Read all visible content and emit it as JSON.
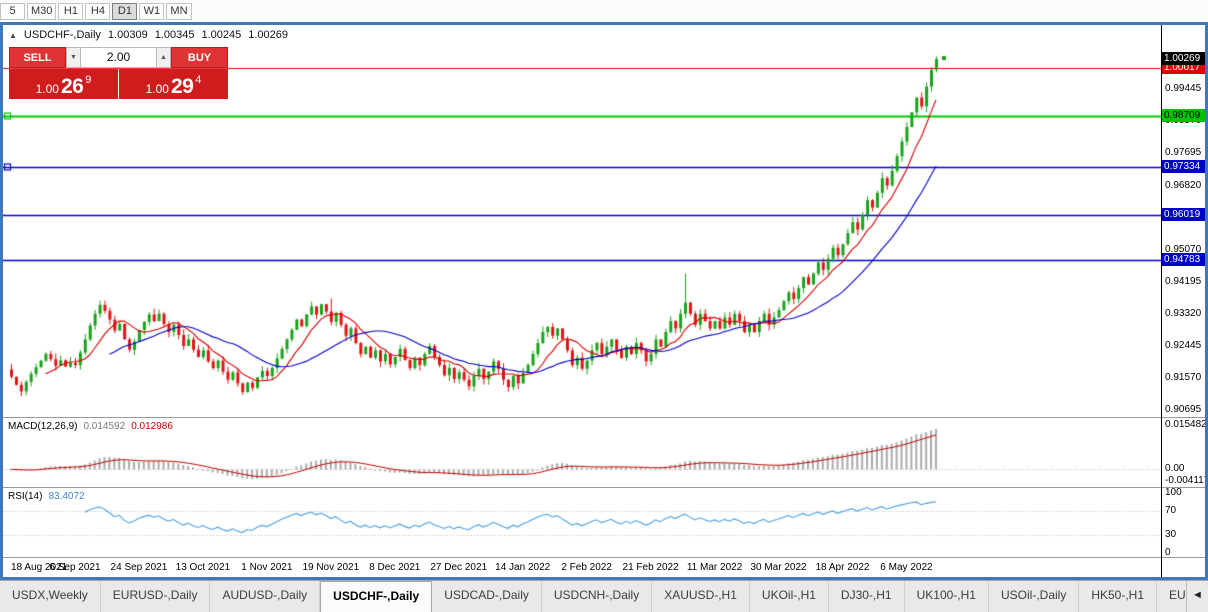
{
  "toolbar": {
    "periods": [
      {
        "label": "5"
      },
      {
        "label": "M30"
      },
      {
        "label": "H1"
      },
      {
        "label": "H4"
      },
      {
        "label": "D1",
        "active": true
      },
      {
        "label": "W1"
      },
      {
        "label": "MN"
      }
    ]
  },
  "chart": {
    "header": {
      "title": "USDCHF-,Daily",
      "open": "1.00309",
      "high": "1.00345",
      "low": "1.00245",
      "close": "1.00269"
    },
    "trade_panel": {
      "sell_label": "SELL",
      "buy_label": "BUY",
      "volume": "2.00",
      "decrease_glyph": "▼",
      "increase_glyph": "▲",
      "sell_price": {
        "prefix": "1.00",
        "big": "26",
        "sup": "9"
      },
      "buy_price": {
        "prefix": "1.00",
        "big": "29",
        "sup": "4"
      }
    },
    "price_axis": {
      "current": {
        "value": "1.00269",
        "bg": "#000000",
        "fg": "#ffffff"
      },
      "levels": [
        {
          "value": "1.00017",
          "color": "#e00000",
          "text": "#ffffff",
          "width": 1.2,
          "marker": false
        },
        {
          "value": "0.98709",
          "color": "#00c400",
          "text": "#000000",
          "width": 2,
          "marker": true
        },
        {
          "value": "0.97334",
          "color": "#0000c8",
          "text": "#ffffff",
          "width": 1.6,
          "marker": true
        },
        {
          "value": "0.96019",
          "color": "#0000c8",
          "text": "#ffffff",
          "width": 1.6,
          "marker": false
        },
        {
          "value": "0.94783",
          "color": "#0000c8",
          "text": "#ffffff",
          "width": 1.6,
          "marker": false
        }
      ],
      "gridline_labels": [
        "0.99445",
        "0.98570",
        "0.97695",
        "0.96820",
        "0.95945",
        "0.95070",
        "0.94195",
        "0.93320",
        "0.92445",
        "0.91570",
        "0.90695"
      ]
    }
  },
  "macd": {
    "label": "MACD(12,26,9)",
    "value": "0.014592",
    "signal_value": "0.012986",
    "axis": [
      "0.015482",
      "0.00",
      "-0.004117"
    ],
    "scale_max": 0.016,
    "scale_min": -0.0047
  },
  "rsi": {
    "label": "RSI(14)",
    "value": "83.4072",
    "axis": [
      "100",
      "70",
      "30",
      "0"
    ]
  },
  "date_axis": {
    "labels": [
      {
        "text": "18 Aug 2021",
        "i": 0
      },
      {
        "text": "6 Sep 2021",
        "i": 13
      },
      {
        "text": "24 Sep 2021",
        "i": 26
      },
      {
        "text": "13 Oct 2021",
        "i": 39
      },
      {
        "text": "1 Nov 2021",
        "i": 52
      },
      {
        "text": "19 Nov 2021",
        "i": 65
      },
      {
        "text": "8 Dec 2021",
        "i": 78
      },
      {
        "text": "27 Dec 2021",
        "i": 91
      },
      {
        "text": "14 Jan 2022",
        "i": 104
      },
      {
        "text": "2 Feb 2022",
        "i": 117
      },
      {
        "text": "21 Feb 2022",
        "i": 130
      },
      {
        "text": "11 Mar 2022",
        "i": 143
      },
      {
        "text": "30 Mar 2022",
        "i": 156
      },
      {
        "text": "18 Apr 2022",
        "i": 169
      },
      {
        "text": "6 May 2022",
        "i": 182
      }
    ]
  },
  "tabbar": {
    "scroll_left": "◄",
    "tabs": [
      {
        "label": "USDX,Weekly"
      },
      {
        "label": "EURUSD-,Daily"
      },
      {
        "label": "AUDUSD-,Daily"
      },
      {
        "label": "USDCHF-,Daily",
        "active": true
      },
      {
        "label": "USDCAD-,Daily"
      },
      {
        "label": "USDCNH-,Daily"
      },
      {
        "label": "XAUUSD-,H1"
      },
      {
        "label": "UKOil-,H1"
      },
      {
        "label": "DJ30-,H1"
      },
      {
        "label": "UK100-,H1"
      },
      {
        "label": "USOil-,Daily"
      },
      {
        "label": "HK50-,H1"
      },
      {
        "label": "EU"
      }
    ]
  },
  "colors": {
    "up": "#1aa21a",
    "down": "#e01515",
    "ma_fast": "#d40000",
    "ma_slow": "#0000c8",
    "macd_hist": "#ababab",
    "macd_signal": "#c00000",
    "rsi_line": "#4aa0e0"
  },
  "chart_data": {
    "type": "candlestick",
    "symbol": "USDCHF-",
    "timeframe": "Daily",
    "last_ohlc": {
      "open": 1.00309,
      "high": 1.00345,
      "low": 1.00245,
      "close": 1.00269
    },
    "visible_price_range": [
      0.90502,
      1.01202
    ],
    "horizontal_levels": [
      1.00017,
      0.98709,
      0.97334,
      0.96019,
      0.94783
    ],
    "indicators": {
      "macd": {
        "fast": 12,
        "slow": 26,
        "signal": 9,
        "last": 0.014592,
        "last_signal": 0.012986
      },
      "rsi": {
        "period": 14,
        "last": 83.4072
      }
    },
    "wick_overrides": {
      "18": 0.9368,
      "65": 0.9374,
      "137": 0.9442,
      "188": 1.00345
    },
    "closes": [
      0.916,
      0.9138,
      0.912,
      0.9146,
      0.9168,
      0.9186,
      0.9204,
      0.9222,
      0.9208,
      0.919,
      0.9205,
      0.9188,
      0.9198,
      0.9192,
      0.9226,
      0.9262,
      0.93,
      0.9332,
      0.9356,
      0.934,
      0.9316,
      0.9286,
      0.9304,
      0.9262,
      0.9234,
      0.9256,
      0.9288,
      0.931,
      0.933,
      0.9312,
      0.9332,
      0.9304,
      0.9282,
      0.9302,
      0.9274,
      0.9244,
      0.9262,
      0.9234,
      0.9214,
      0.9232,
      0.9202,
      0.9184,
      0.9204,
      0.9174,
      0.9152,
      0.9172,
      0.9142,
      0.9118,
      0.9144,
      0.913,
      0.9158,
      0.9176,
      0.9162,
      0.9184,
      0.921,
      0.9236,
      0.9262,
      0.9288,
      0.9316,
      0.9298,
      0.933,
      0.9352,
      0.933,
      0.9358,
      0.9338,
      0.931,
      0.9334,
      0.9302,
      0.9272,
      0.9292,
      0.9252,
      0.9222,
      0.9242,
      0.9212,
      0.9232,
      0.9202,
      0.9222,
      0.9194,
      0.9214,
      0.9236,
      0.9206,
      0.9184,
      0.9212,
      0.9192,
      0.9222,
      0.9244,
      0.9214,
      0.9192,
      0.9164,
      0.9184,
      0.9154,
      0.9172,
      0.9152,
      0.9134,
      0.9162,
      0.9182,
      0.9154,
      0.9174,
      0.9202,
      0.9182,
      0.9152,
      0.9132,
      0.9162,
      0.9142,
      0.917,
      0.9192,
      0.9222,
      0.9252,
      0.9282,
      0.9296,
      0.9272,
      0.9292,
      0.9262,
      0.9232,
      0.9192,
      0.9212,
      0.9182,
      0.9204,
      0.9232,
      0.9252,
      0.9222,
      0.9242,
      0.9262,
      0.9232,
      0.9212,
      0.9242,
      0.9222,
      0.9252,
      0.9232,
      0.9202,
      0.9222,
      0.9262,
      0.9242,
      0.9282,
      0.9312,
      0.9292,
      0.9332,
      0.9362,
      0.9332,
      0.9302,
      0.9332,
      0.9312,
      0.9292,
      0.9312,
      0.9292,
      0.9322,
      0.9302,
      0.9332,
      0.9312,
      0.9282,
      0.9302,
      0.9282,
      0.9312,
      0.9332,
      0.9302,
      0.9322,
      0.9342,
      0.9366,
      0.939,
      0.9372,
      0.9402,
      0.9432,
      0.9412,
      0.9442,
      0.9472,
      0.9452,
      0.9482,
      0.9512,
      0.9492,
      0.9522,
      0.9552,
      0.9582,
      0.9562,
      0.9602,
      0.9642,
      0.9622,
      0.9662,
      0.9702,
      0.9682,
      0.9722,
      0.9762,
      0.9802,
      0.9842,
      0.9882,
      0.9922,
      0.9898,
      0.9952,
      0.9998,
      1.00269
    ]
  }
}
